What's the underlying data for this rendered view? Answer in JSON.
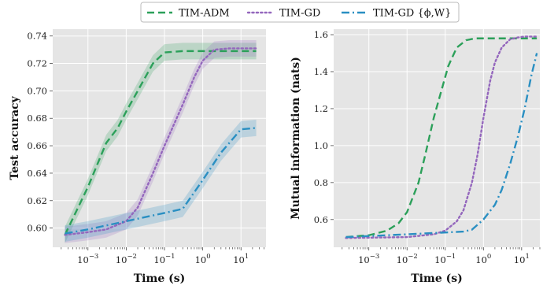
{
  "legend": {
    "entries": [
      {
        "label": "TIM-ADM",
        "color": "#2ca05a",
        "dash": "dashed"
      },
      {
        "label": "TIM-GD",
        "color": "#9467bd",
        "dash": "dotted"
      },
      {
        "label": "TIM-GD {ϕ,W}",
        "color": "#2a8fc2",
        "dash": "dashdot"
      }
    ]
  },
  "chart_data": [
    {
      "type": "line",
      "xlabel": "Time (s)",
      "ylabel": "Test accuracy",
      "xscale": "log",
      "xlim": [
        0.00012,
        45
      ],
      "ylim": [
        0.586,
        0.745
      ],
      "xticks": [
        {
          "value": 0.001,
          "base": "10",
          "exp": "−3"
        },
        {
          "value": 0.01,
          "base": "10",
          "exp": "−2"
        },
        {
          "value": 0.1,
          "base": "10",
          "exp": "−1"
        },
        {
          "value": 1,
          "base": "10",
          "exp": "0"
        },
        {
          "value": 10,
          "base": "10",
          "exp": "1"
        }
      ],
      "yticks": [
        "0.60",
        "0.62",
        "0.64",
        "0.66",
        "0.68",
        "0.70",
        "0.72",
        "0.74"
      ],
      "grid": true,
      "series": [
        {
          "name": "TIM-ADM",
          "color": "#2ca05a",
          "dash": "dashed",
          "x": [
            0.00025,
            0.001,
            0.003,
            0.006,
            0.01,
            0.02,
            0.05,
            0.1,
            0.3,
            1,
            3,
            10,
            25
          ],
          "y": [
            0.595,
            0.63,
            0.662,
            0.673,
            0.685,
            0.7,
            0.72,
            0.728,
            0.729,
            0.729,
            0.729,
            0.729,
            0.729
          ],
          "band": 0.006
        },
        {
          "name": "TIM-GD",
          "color": "#9467bd",
          "dash": "dotted",
          "x": [
            0.00025,
            0.001,
            0.003,
            0.01,
            0.02,
            0.05,
            0.1,
            0.3,
            0.6,
            1,
            2,
            5,
            10,
            25
          ],
          "y": [
            0.595,
            0.597,
            0.599,
            0.605,
            0.615,
            0.64,
            0.66,
            0.69,
            0.71,
            0.722,
            0.73,
            0.731,
            0.731,
            0.731
          ],
          "band": 0.006
        },
        {
          "name": "TIM-GD {ϕ,W}",
          "color": "#2a8fc2",
          "dash": "dashdot",
          "x": [
            0.00025,
            0.001,
            0.01,
            0.1,
            0.3,
            1,
            3,
            10,
            25
          ],
          "y": [
            0.596,
            0.599,
            0.605,
            0.611,
            0.614,
            0.635,
            0.655,
            0.672,
            0.673
          ],
          "band": 0.006
        }
      ]
    },
    {
      "type": "line",
      "xlabel": "Time (s)",
      "ylabel": "Mutual information (nats)",
      "xscale": "log",
      "xlim": [
        0.00012,
        30
      ],
      "ylim": [
        0.45,
        1.63
      ],
      "xticks": [
        {
          "value": 0.001,
          "base": "10",
          "exp": "−3"
        },
        {
          "value": 0.01,
          "base": "10",
          "exp": "−2"
        },
        {
          "value": 0.1,
          "base": "10",
          "exp": "−1"
        },
        {
          "value": 1,
          "base": "10",
          "exp": "0"
        },
        {
          "value": 10,
          "base": "10",
          "exp": "1"
        }
      ],
      "yticks": [
        "0.6",
        "0.8",
        "1.0",
        "1.2",
        "1.4",
        "1.6"
      ],
      "grid": true,
      "series": [
        {
          "name": "TIM-ADM",
          "color": "#2ca05a",
          "dash": "dashed",
          "x": [
            0.00025,
            0.001,
            0.003,
            0.006,
            0.01,
            0.02,
            0.03,
            0.05,
            0.08,
            0.12,
            0.2,
            0.35,
            0.6,
            1,
            3,
            10,
            25
          ],
          "y": [
            0.505,
            0.515,
            0.54,
            0.58,
            0.64,
            0.8,
            0.95,
            1.15,
            1.3,
            1.43,
            1.53,
            1.57,
            1.58,
            1.58,
            1.58,
            1.58,
            1.58
          ],
          "band": 0
        },
        {
          "name": "TIM-GD",
          "color": "#9467bd",
          "dash": "dotted",
          "x": [
            0.00025,
            0.01,
            0.05,
            0.1,
            0.2,
            0.3,
            0.5,
            0.7,
            1,
            1.5,
            2,
            3,
            5,
            8,
            12,
            25
          ],
          "y": [
            0.5,
            0.505,
            0.52,
            0.54,
            0.59,
            0.65,
            0.8,
            0.95,
            1.15,
            1.35,
            1.45,
            1.53,
            1.575,
            1.585,
            1.59,
            1.59
          ],
          "band": 0
        },
        {
          "name": "TIM-GD {ϕ,W}",
          "color": "#2a8fc2",
          "dash": "dashdot",
          "x": [
            0.00025,
            0.01,
            0.3,
            0.5,
            1,
            2,
            3,
            5,
            8,
            12,
            18,
            25
          ],
          "y": [
            0.505,
            0.52,
            0.535,
            0.545,
            0.6,
            0.68,
            0.76,
            0.9,
            1.05,
            1.2,
            1.38,
            1.5
          ],
          "band": 0
        }
      ]
    }
  ]
}
